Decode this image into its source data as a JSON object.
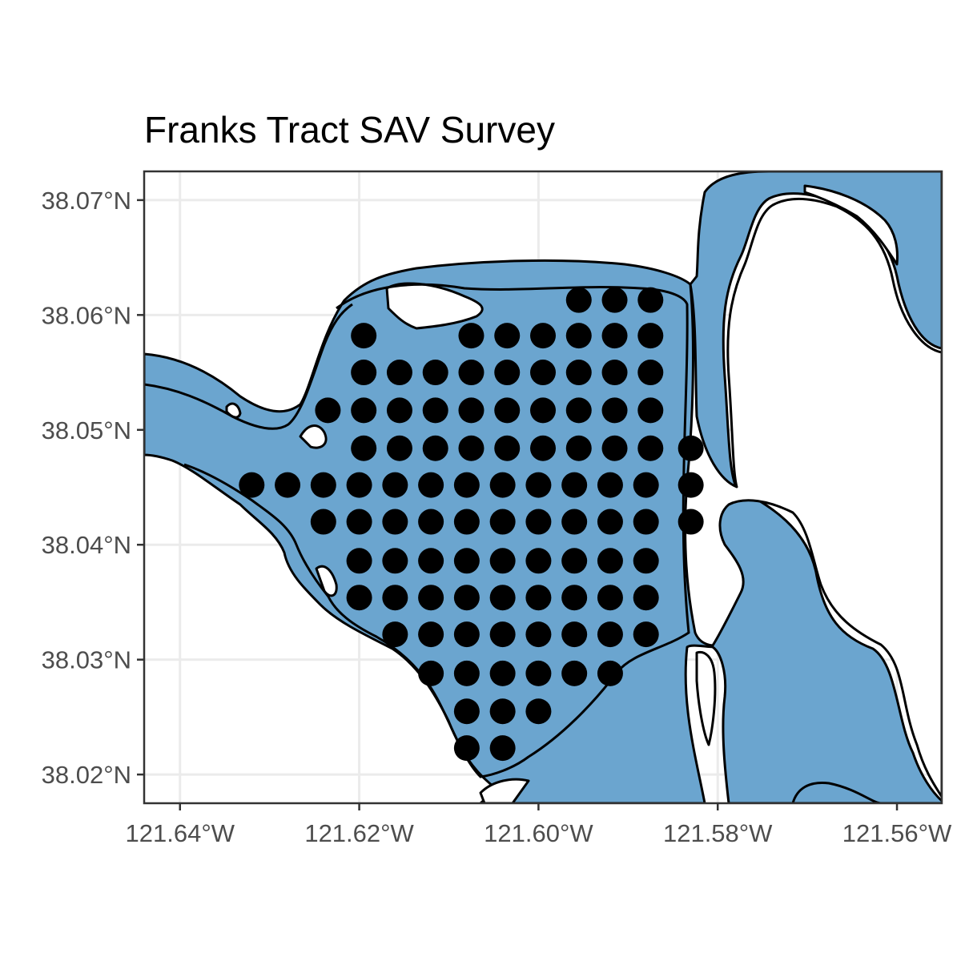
{
  "title": "Franks Tract SAV Survey",
  "colors": {
    "water": "#6ba5cf",
    "points": "#000000",
    "outline": "#000000",
    "grid": "#ebebeb",
    "axis_text": "#4d4d4d"
  },
  "chart_data": {
    "type": "scatter",
    "title": "Franks Tract SAV Survey",
    "xlabel": "",
    "ylabel": "",
    "xlim": [
      -121.644,
      -121.555
    ],
    "ylim": [
      38.0175,
      38.0725
    ],
    "grid": true,
    "x_ticks": [
      {
        "value": -121.64,
        "label": "121.64°W"
      },
      {
        "value": -121.62,
        "label": "121.62°W"
      },
      {
        "value": -121.6,
        "label": "121.60°W"
      },
      {
        "value": -121.58,
        "label": "121.58°W"
      },
      {
        "value": -121.56,
        "label": "121.56°W"
      }
    ],
    "y_ticks": [
      {
        "value": 38.02,
        "label": "38.02°N"
      },
      {
        "value": 38.03,
        "label": "38.03°N"
      },
      {
        "value": 38.04,
        "label": "38.04°N"
      },
      {
        "value": 38.05,
        "label": "38.05°N"
      },
      {
        "value": 38.06,
        "label": "38.06°N"
      },
      {
        "value": 38.07,
        "label": "38.07°N"
      }
    ],
    "rows": [
      {
        "lat": 38.0613,
        "lons": [
          -121.5955,
          -121.5915,
          -121.5875
        ]
      },
      {
        "lat": 38.0582,
        "lons": [
          -121.6195,
          -121.6075,
          -121.6035,
          -121.5995,
          -121.5955,
          -121.5915,
          -121.5875
        ]
      },
      {
        "lat": 38.055,
        "lons": [
          -121.6195,
          -121.6155,
          -121.6115,
          -121.6075,
          -121.6035,
          -121.5995,
          -121.5955,
          -121.5915,
          -121.5875
        ]
      },
      {
        "lat": 38.0517,
        "lons": [
          -121.6235,
          -121.6195,
          -121.6155,
          -121.6115,
          -121.6075,
          -121.6035,
          -121.5995,
          -121.5955,
          -121.5915,
          -121.5875
        ]
      },
      {
        "lat": 38.0484,
        "lons": [
          -121.6195,
          -121.6155,
          -121.6115,
          -121.6075,
          -121.6035,
          -121.5995,
          -121.5955,
          -121.5915,
          -121.5875,
          -121.583
        ]
      },
      {
        "lat": 38.0452,
        "lons": [
          -121.632,
          -121.628,
          -121.624,
          -121.62,
          -121.616,
          -121.612,
          -121.608,
          -121.604,
          -121.6,
          -121.596,
          -121.592,
          -121.588,
          -121.583
        ]
      },
      {
        "lat": 38.042,
        "lons": [
          -121.624,
          -121.62,
          -121.616,
          -121.612,
          -121.608,
          -121.604,
          -121.6,
          -121.596,
          -121.592,
          -121.588,
          -121.583
        ]
      },
      {
        "lat": 38.0386,
        "lons": [
          -121.62,
          -121.616,
          -121.612,
          -121.608,
          -121.604,
          -121.6,
          -121.596,
          -121.592,
          -121.588
        ]
      },
      {
        "lat": 38.0354,
        "lons": [
          -121.62,
          -121.616,
          -121.612,
          -121.608,
          -121.604,
          -121.6,
          -121.596,
          -121.592,
          -121.588
        ]
      },
      {
        "lat": 38.0322,
        "lons": [
          -121.616,
          -121.612,
          -121.608,
          -121.604,
          -121.6,
          -121.596,
          -121.592,
          -121.588
        ]
      },
      {
        "lat": 38.0288,
        "lons": [
          -121.612,
          -121.608,
          -121.604,
          -121.6,
          -121.596,
          -121.592
        ]
      },
      {
        "lat": 38.0255,
        "lons": [
          -121.608,
          -121.604,
          -121.6
        ]
      },
      {
        "lat": 38.0223,
        "lons": [
          -121.608,
          -121.604
        ]
      }
    ]
  }
}
